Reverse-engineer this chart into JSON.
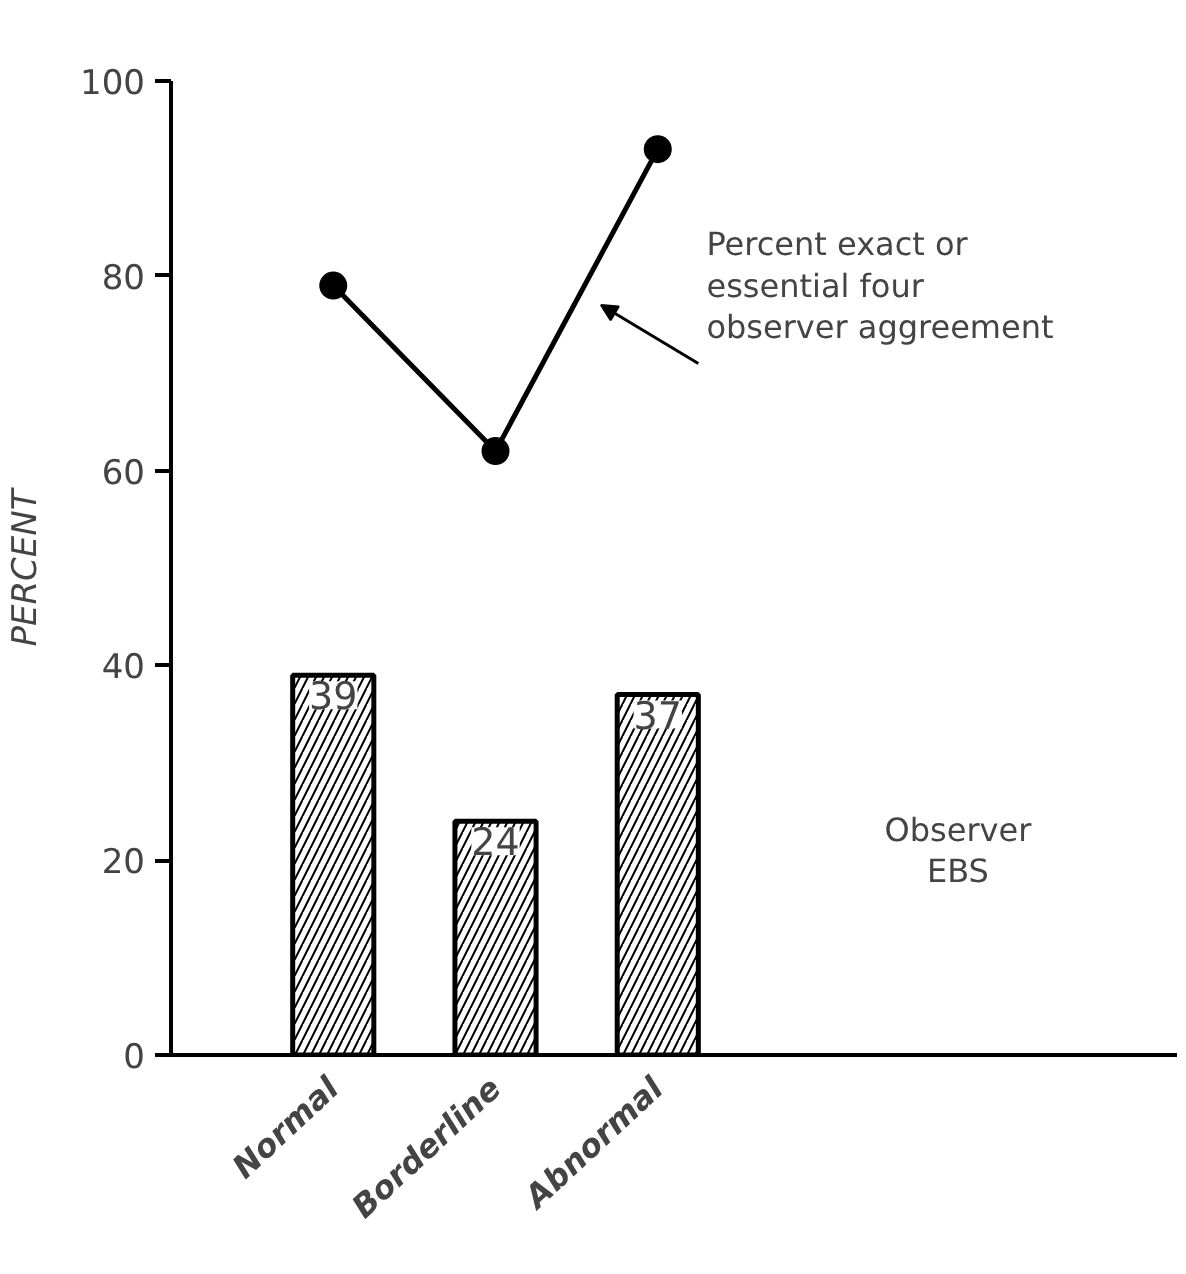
{
  "chart_data": {
    "type": "bar",
    "ylabel": "PERCENT",
    "categories": [
      "Normal",
      "Borderline",
      "Abnormal"
    ],
    "series": [
      {
        "color": "#000000",
        "values": [
          39,
          24,
          37
        ],
        "value_labels": [
          "39",
          "24",
          "37"
        ]
      },
      {
        "type": "line",
        "color": "#000000",
        "values": [
          79,
          62,
          93
        ],
        "marker": "circle",
        "line_style": "solid"
      }
    ],
    "ylim": [
      0,
      100
    ],
    "yticks": [
      0,
      20,
      40,
      60,
      80,
      100
    ],
    "grid": false,
    "annotations": [
      "Percent exact or\nessential four\nobserver aggreement",
      "Observer\nEBS"
    ]
  }
}
